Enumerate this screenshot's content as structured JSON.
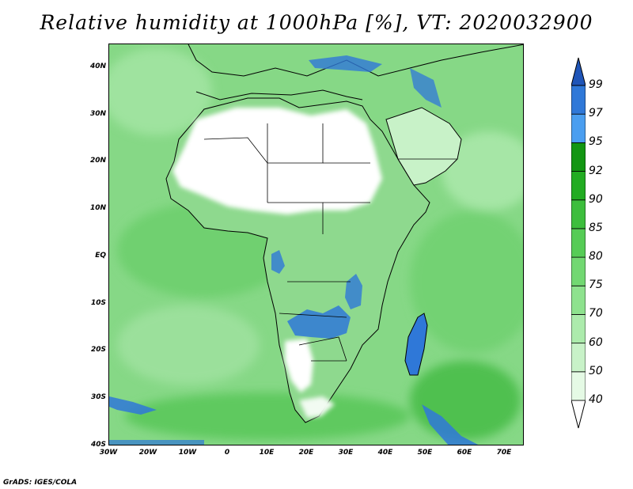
{
  "title": "Relative humidity at 1000hPa [%], VT: 2020032900",
  "credit": "GrADS: IGES/COLA",
  "map": {
    "lon_range": [
      -30,
      75
    ],
    "lat_range": [
      -40,
      45
    ],
    "lat_ticks": [
      {
        "value": 40,
        "label": "40N"
      },
      {
        "value": 30,
        "label": "30N"
      },
      {
        "value": 20,
        "label": "20N"
      },
      {
        "value": 10,
        "label": "10N"
      },
      {
        "value": 0,
        "label": "EQ"
      },
      {
        "value": -10,
        "label": "10S"
      },
      {
        "value": -20,
        "label": "20S"
      },
      {
        "value": -30,
        "label": "30S"
      },
      {
        "value": -40,
        "label": "40S"
      }
    ],
    "lon_ticks": [
      {
        "value": -30,
        "label": "30W"
      },
      {
        "value": -20,
        "label": "20W"
      },
      {
        "value": -10,
        "label": "10W"
      },
      {
        "value": 0,
        "label": "0"
      },
      {
        "value": 10,
        "label": "10E"
      },
      {
        "value": 20,
        "label": "20E"
      },
      {
        "value": 30,
        "label": "30E"
      },
      {
        "value": 40,
        "label": "40E"
      },
      {
        "value": 50,
        "label": "50E"
      },
      {
        "value": 60,
        "label": "60E"
      },
      {
        "value": 70,
        "label": "70E"
      }
    ]
  },
  "colorbar": {
    "levels": [
      40,
      50,
      60,
      70,
      75,
      80,
      85,
      90,
      92,
      95,
      97,
      99
    ],
    "colors": [
      "#ffffff",
      "#e5fae5",
      "#c8f2c8",
      "#acebac",
      "#8ee28e",
      "#72d872",
      "#56cc56",
      "#3dbe3d",
      "#22ac22",
      "#129612",
      "#4a9ef0",
      "#2f78d8",
      "#1f55b8"
    ]
  },
  "colors": {
    "land_outline": "#000000",
    "dry_region": "#ffffff",
    "saturated": "#2f78d8"
  }
}
